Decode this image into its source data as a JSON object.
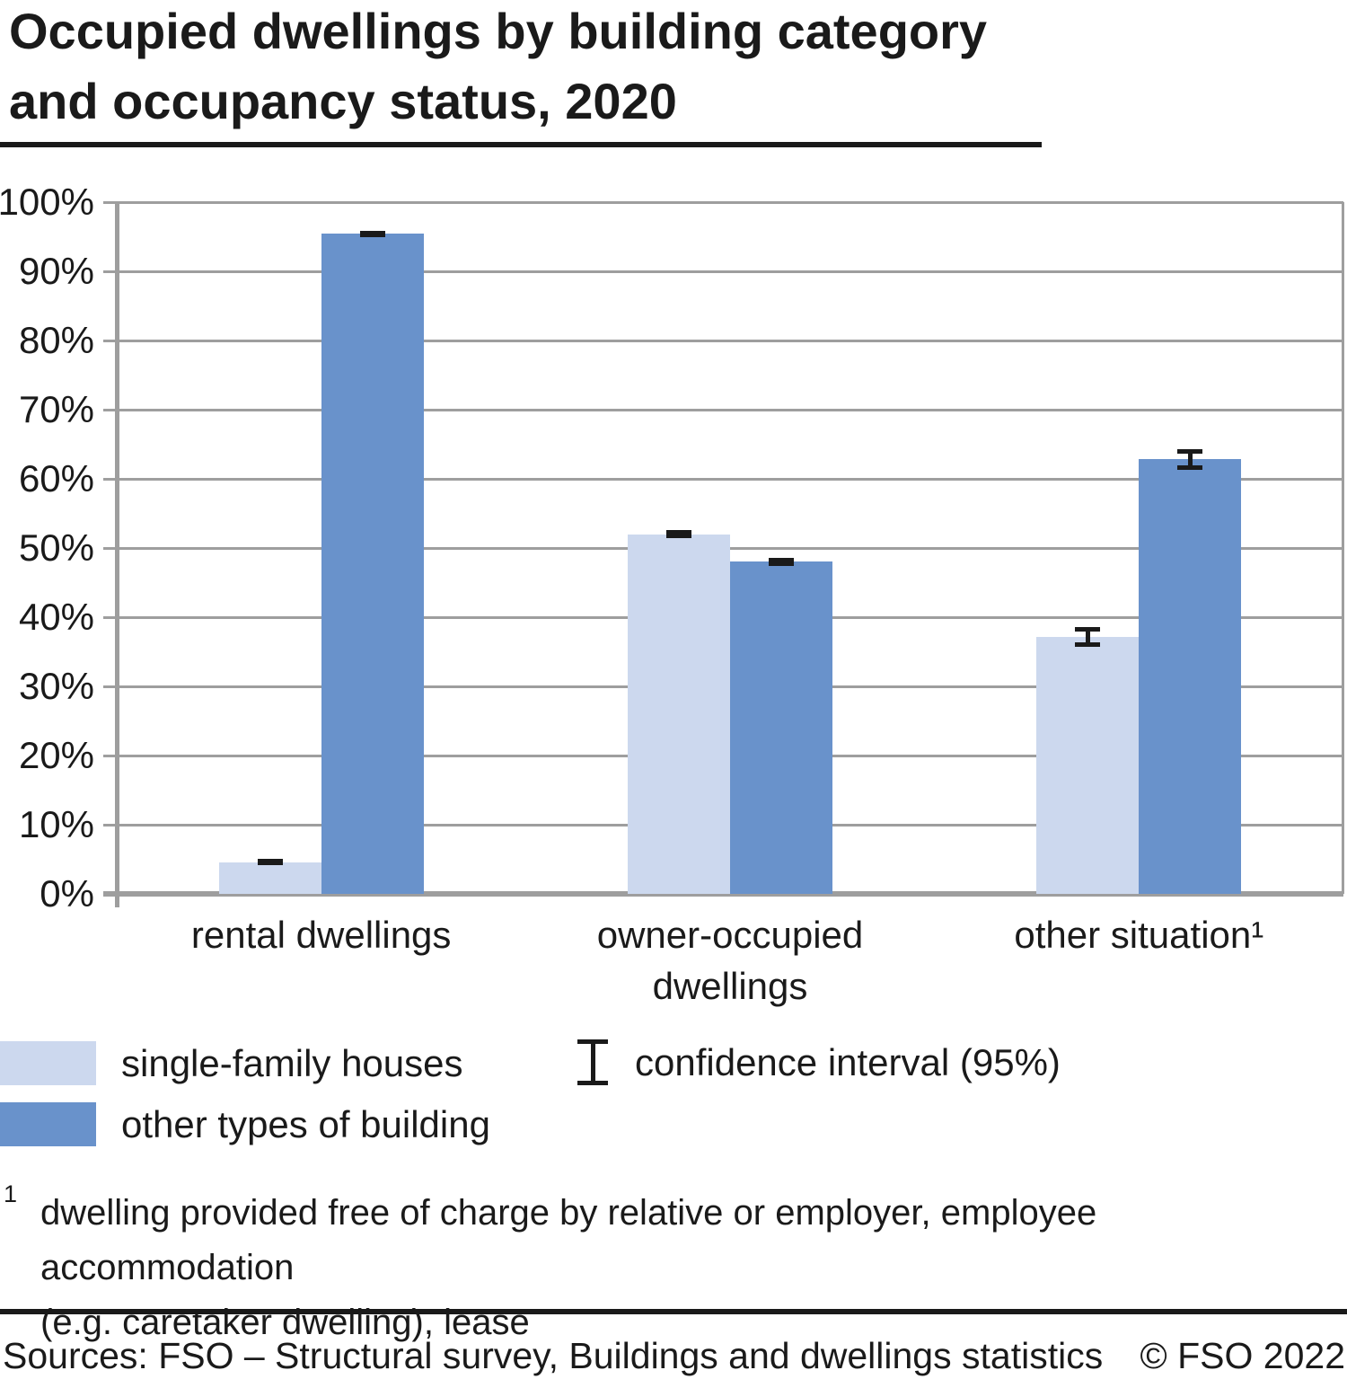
{
  "title": {
    "text": "Occupied dwellings by building category\nand occupancy status, 2020"
  },
  "chart_data": {
    "type": "bar",
    "title": "Occupied dwellings by building category and occupancy status, 2020",
    "categories": [
      "rental dwellings",
      "owner-occupied\ndwellings",
      "other situation¹"
    ],
    "series": [
      {
        "name": "single-family houses",
        "color": "#ccd8ee",
        "values": [
          4.6,
          52.0,
          37.2
        ],
        "ci95_halfwidth": [
          0.1,
          0.3,
          1.1
        ]
      },
      {
        "name": "other types of building",
        "color": "#6992cb",
        "values": [
          95.4,
          48.0,
          62.8
        ],
        "ci95_halfwidth": [
          0.1,
          0.3,
          1.2
        ]
      }
    ],
    "ylim": [
      0,
      100
    ],
    "y_tick_labels": [
      "0%",
      "10%",
      "20%",
      "30%",
      "40%",
      "50%",
      "60%",
      "70%",
      "80%",
      "90%",
      "100%"
    ],
    "y_tick_step": 10,
    "grid": true,
    "error_bars": true,
    "legend_position": "bottom-left",
    "legend_ci_label": "confidence interval (95%)"
  },
  "legend": {
    "items": [
      {
        "label": "single-family houses",
        "color": "#ccd8ee"
      },
      {
        "label": "other types of building",
        "color": "#6992cb"
      }
    ],
    "ci_label": "confidence interval (95%)"
  },
  "footnote": {
    "marker": "1",
    "text": "dwelling provided free of charge by relative or employer, employee accommodation\n(e.g. caretaker dwelling), lease"
  },
  "footer": {
    "sources": "Sources: FSO – Structural survey, Buildings and dwellings statistics",
    "copyright": "© FSO 2022"
  },
  "colors": {
    "series_light": "#ccd8ee",
    "series_dark": "#6992cb",
    "grid": "#9e9e9e",
    "text": "#1a1a1a",
    "error_bar": "#1a1a1a",
    "rule": "#1a1a1a"
  }
}
